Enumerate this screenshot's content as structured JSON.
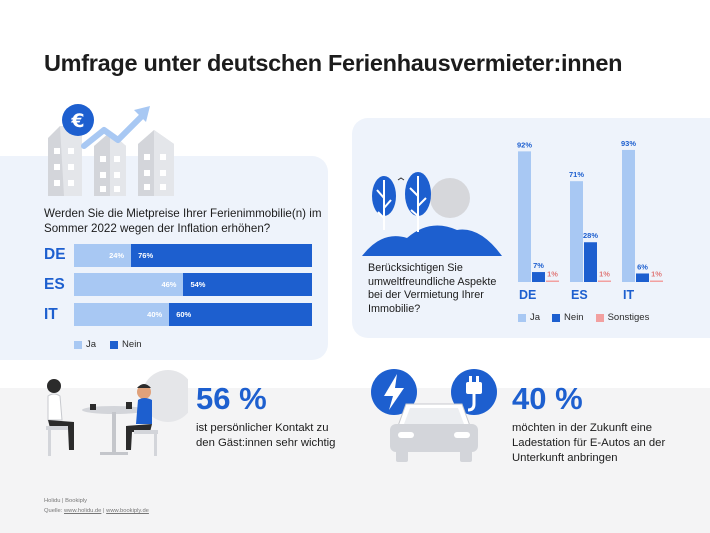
{
  "title": "Umfrage unter deutschen Ferienhausvermieter:innen",
  "colors": {
    "ja": "#a8c8f3",
    "nein": "#1d5fcf",
    "sonstiges": "#f2a0a0",
    "panel": "#eef3fb",
    "accent": "#1d5fcf"
  },
  "survey1": {
    "question": "Werden Sie die Mietpreise Ihrer Ferienimmobilie(n) im Sommer 2022 wegen der Inflation erhöhen?",
    "rows": [
      {
        "country": "DE",
        "ja": 24,
        "nein": 76,
        "ja_label": "24%",
        "nein_label": "76%"
      },
      {
        "country": "ES",
        "ja": 46,
        "nein": 54,
        "ja_label": "46%",
        "nein_label": "54%"
      },
      {
        "country": "IT",
        "ja": 40,
        "nein": 60,
        "ja_label": "40%",
        "nein_label": "60%"
      }
    ],
    "legend": {
      "ja": "Ja",
      "nein": "Nein"
    }
  },
  "survey2": {
    "question": "Berücksichtigen Sie umweltfreundliche Aspekte bei der Vermietung Ihrer Immobilie?",
    "legend": {
      "ja": "Ja",
      "nein": "Nein",
      "sonstiges": "Sonstiges"
    }
  },
  "chart_data": [
    {
      "type": "bar",
      "orientation": "horizontal-stacked",
      "categories": [
        "DE",
        "ES",
        "IT"
      ],
      "series": [
        {
          "name": "Ja",
          "values": [
            24,
            46,
            40
          ]
        },
        {
          "name": "Nein",
          "values": [
            76,
            54,
            60
          ]
        }
      ],
      "title": "Werden Sie die Mietpreise Ihrer Ferienimmobilie(n) im Sommer 2022 wegen der Inflation erhöhen?",
      "unit": "%",
      "legend": "bottom-left"
    },
    {
      "type": "bar",
      "orientation": "vertical-grouped",
      "categories": [
        "DE",
        "ES",
        "IT"
      ],
      "series": [
        {
          "name": "Ja",
          "values": [
            92,
            71,
            93
          ],
          "labels": [
            "92%",
            "71%",
            "93%"
          ]
        },
        {
          "name": "Nein",
          "values": [
            7,
            28,
            6
          ],
          "labels": [
            "7%",
            "28%",
            "6%"
          ]
        },
        {
          "name": "Sonstiges",
          "values": [
            1,
            1,
            1
          ],
          "labels": [
            "1%",
            "1%",
            "1%"
          ]
        }
      ],
      "title": "Berücksichtigen Sie umweltfreundliche Aspekte bei der Vermietung Ihrer Immobilie?",
      "ylim": [
        0,
        100
      ],
      "unit": "%",
      "legend": "bottom",
      "grid": false
    }
  ],
  "stat1": {
    "value": "56 %",
    "text": "ist persönlicher Kontakt zu den Gäst:innen sehr wichtig"
  },
  "stat2": {
    "value": "40 %",
    "text": "möchten in der Zukunft eine Ladestation für E-Autos an der Unterkunft anbringen"
  },
  "icons": {
    "house": "house-icon",
    "euro": "euro-icon",
    "arrow": "trend-arrow-icon",
    "lightning": "lightning-icon",
    "plug": "plug-icon",
    "car": "car-icon",
    "tree": "tree-icon",
    "people": "people-at-table-icon"
  },
  "footer": {
    "brand": "Holidu | Bookiply",
    "source_prefix": "Quelle:",
    "link1": "www.holidu.de",
    "separator": "|",
    "link2": "www.bookiply.de"
  }
}
